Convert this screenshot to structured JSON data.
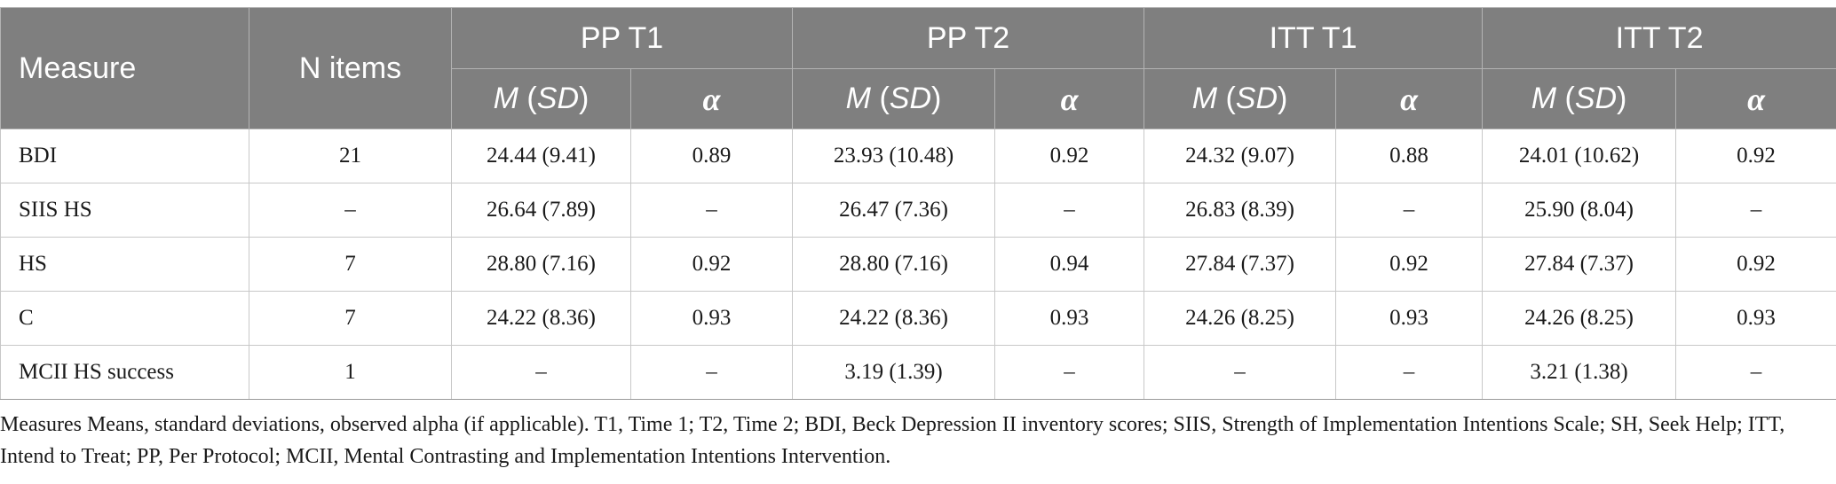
{
  "header": {
    "measure": "Measure",
    "n_items": "N items",
    "groups": [
      "PP T1",
      "PP T2",
      "ITT T1",
      "ITT T2"
    ],
    "sub_m": "M",
    "sub_sd_open": " (",
    "sub_sd": "SD",
    "sub_sd_close": ")",
    "sub_alpha": "α"
  },
  "rows": [
    [
      "BDI",
      "21",
      "24.44 (9.41)",
      "0.89",
      "23.93 (10.48)",
      "0.92",
      "24.32 (9.07)",
      "0.88",
      "24.01 (10.62)",
      "0.92"
    ],
    [
      "SIIS HS",
      "–",
      "26.64 (7.89)",
      "–",
      "26.47 (7.36)",
      "–",
      "26.83 (8.39)",
      "–",
      "25.90 (8.04)",
      "–"
    ],
    [
      "HS",
      "7",
      "28.80 (7.16)",
      "0.92",
      "28.80 (7.16)",
      "0.94",
      "27.84 (7.37)",
      "0.92",
      "27.84 (7.37)",
      "0.92"
    ],
    [
      "C",
      "7",
      "24.22 (8.36)",
      "0.93",
      "24.22 (8.36)",
      "0.93",
      "24.26 (8.25)",
      "0.93",
      "24.26 (8.25)",
      "0.93"
    ],
    [
      "MCII HS success",
      "1",
      "–",
      "–",
      "3.19 (1.39)",
      "–",
      "–",
      "–",
      "3.21 (1.38)",
      "–"
    ]
  ],
  "note": "Measures Means, standard deviations, observed alpha (if applicable). T1, Time 1; T2, Time 2; BDI, Beck Depression II inventory scores; SIIS, Strength of Implementation Intentions Scale; SH, Seek Help; ITT, Intend to Treat; PP, Per Protocol; MCII, Mental Contrasting and Implementation Intentions Intervention."
}
